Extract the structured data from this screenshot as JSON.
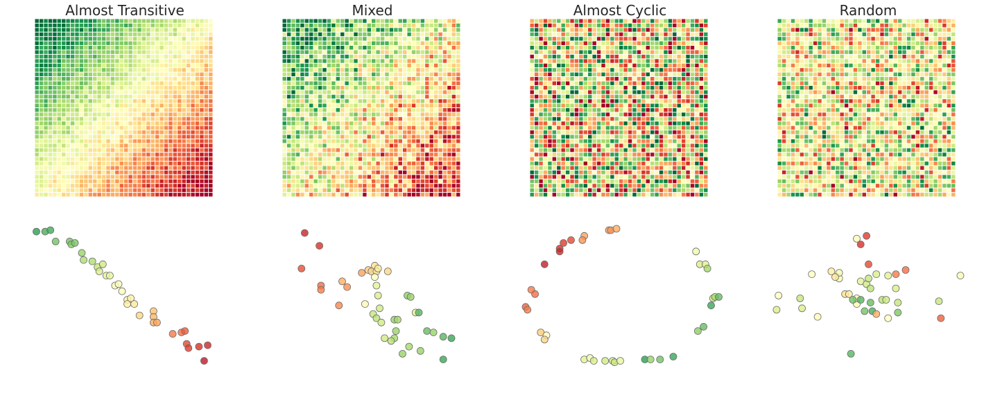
{
  "chart_data": [
    {
      "type": "heatmap",
      "title": "Almost Transitive",
      "grid_size": 40,
      "pattern": "transitive",
      "noise": 0.12,
      "seed": 11,
      "colormap": "RdYlGn (reversed)"
    },
    {
      "type": "heatmap",
      "title": "Mixed",
      "grid_size": 40,
      "pattern": "mixed",
      "noise": 0.35,
      "seed": 23,
      "colormap": "RdYlGn (reversed)"
    },
    {
      "type": "heatmap",
      "title": "Almost Cyclic",
      "grid_size": 40,
      "pattern": "cyclic",
      "noise": 0.25,
      "seed": 37,
      "colormap": "RdYlGn (reversed)"
    },
    {
      "type": "heatmap",
      "title": "Random",
      "grid_size": 40,
      "pattern": "random",
      "noise": 0.0,
      "seed": 53,
      "colormap": "RdYlGn (reversed)"
    },
    {
      "type": "scatter",
      "panel": "Almost Transitive",
      "xlim": [
        0,
        1
      ],
      "ylim": [
        0,
        1
      ],
      "points": [
        {
          "x": 0.01,
          "y": 0.98,
          "v": 0.12
        },
        {
          "x": 0.06,
          "y": 0.98,
          "v": 0.16
        },
        {
          "x": 0.09,
          "y": 0.99,
          "v": 0.15
        },
        {
          "x": 0.12,
          "y": 0.91,
          "v": 0.22
        },
        {
          "x": 0.2,
          "y": 0.91,
          "v": 0.22
        },
        {
          "x": 0.21,
          "y": 0.89,
          "v": 0.25
        },
        {
          "x": 0.23,
          "y": 0.9,
          "v": 0.23
        },
        {
          "x": 0.27,
          "y": 0.83,
          "v": 0.28
        },
        {
          "x": 0.28,
          "y": 0.78,
          "v": 0.32
        },
        {
          "x": 0.33,
          "y": 0.77,
          "v": 0.32
        },
        {
          "x": 0.36,
          "y": 0.73,
          "v": 0.36
        },
        {
          "x": 0.39,
          "y": 0.75,
          "v": 0.38
        },
        {
          "x": 0.37,
          "y": 0.7,
          "v": 0.4
        },
        {
          "x": 0.41,
          "y": 0.67,
          "v": 0.42
        },
        {
          "x": 0.43,
          "y": 0.67,
          "v": 0.44
        },
        {
          "x": 0.46,
          "y": 0.6,
          "v": 0.48
        },
        {
          "x": 0.48,
          "y": 0.61,
          "v": 0.49
        },
        {
          "x": 0.5,
          "y": 0.56,
          "v": 0.51
        },
        {
          "x": 0.53,
          "y": 0.5,
          "v": 0.53
        },
        {
          "x": 0.55,
          "y": 0.51,
          "v": 0.54
        },
        {
          "x": 0.53,
          "y": 0.47,
          "v": 0.55
        },
        {
          "x": 0.57,
          "y": 0.47,
          "v": 0.57
        },
        {
          "x": 0.6,
          "y": 0.39,
          "v": 0.62
        },
        {
          "x": 0.68,
          "y": 0.42,
          "v": 0.66
        },
        {
          "x": 0.68,
          "y": 0.38,
          "v": 0.68
        },
        {
          "x": 0.68,
          "y": 0.34,
          "v": 0.7
        },
        {
          "x": 0.7,
          "y": 0.34,
          "v": 0.71
        },
        {
          "x": 0.79,
          "y": 0.26,
          "v": 0.78
        },
        {
          "x": 0.84,
          "y": 0.27,
          "v": 0.8
        },
        {
          "x": 0.86,
          "y": 0.28,
          "v": 0.83
        },
        {
          "x": 0.87,
          "y": 0.19,
          "v": 0.86
        },
        {
          "x": 0.88,
          "y": 0.16,
          "v": 0.88
        },
        {
          "x": 0.94,
          "y": 0.17,
          "v": 0.9
        },
        {
          "x": 0.99,
          "y": 0.18,
          "v": 0.92
        },
        {
          "x": 0.97,
          "y": 0.07,
          "v": 0.95
        }
      ]
    },
    {
      "type": "scatter",
      "panel": "Mixed",
      "xlim": [
        0,
        1
      ],
      "ylim": [
        0,
        1
      ],
      "points": [
        {
          "x": 0.07,
          "y": 0.97,
          "v": 0.93
        },
        {
          "x": 0.16,
          "y": 0.88,
          "v": 0.9
        },
        {
          "x": 0.05,
          "y": 0.72,
          "v": 0.85
        },
        {
          "x": 0.17,
          "y": 0.6,
          "v": 0.8
        },
        {
          "x": 0.17,
          "y": 0.57,
          "v": 0.78
        },
        {
          "x": 0.28,
          "y": 0.46,
          "v": 0.76
        },
        {
          "x": 0.3,
          "y": 0.63,
          "v": 0.7
        },
        {
          "x": 0.33,
          "y": 0.59,
          "v": 0.75
        },
        {
          "x": 0.42,
          "y": 0.69,
          "v": 0.72
        },
        {
          "x": 0.46,
          "y": 0.71,
          "v": 0.64
        },
        {
          "x": 0.48,
          "y": 0.7,
          "v": 0.62
        },
        {
          "x": 0.5,
          "y": 0.74,
          "v": 0.6
        },
        {
          "x": 0.51,
          "y": 0.7,
          "v": 0.58
        },
        {
          "x": 0.52,
          "y": 0.72,
          "v": 0.56
        },
        {
          "x": 0.58,
          "y": 0.7,
          "v": 0.62
        },
        {
          "x": 0.5,
          "y": 0.66,
          "v": 0.5
        },
        {
          "x": 0.51,
          "y": 0.6,
          "v": 0.42
        },
        {
          "x": 0.52,
          "y": 0.53,
          "v": 0.4
        },
        {
          "x": 0.44,
          "y": 0.47,
          "v": 0.52
        },
        {
          "x": 0.53,
          "y": 0.44,
          "v": 0.38
        },
        {
          "x": 0.49,
          "y": 0.4,
          "v": 0.36
        },
        {
          "x": 0.51,
          "y": 0.37,
          "v": 0.34
        },
        {
          "x": 0.54,
          "y": 0.34,
          "v": 0.38
        },
        {
          "x": 0.62,
          "y": 0.36,
          "v": 0.28
        },
        {
          "x": 0.64,
          "y": 0.36,
          "v": 0.3
        },
        {
          "x": 0.7,
          "y": 0.53,
          "v": 0.26
        },
        {
          "x": 0.72,
          "y": 0.52,
          "v": 0.28
        },
        {
          "x": 0.75,
          "y": 0.41,
          "v": 0.42
        },
        {
          "x": 0.77,
          "y": 0.41,
          "v": 0.18
        },
        {
          "x": 0.63,
          "y": 0.28,
          "v": 0.28
        },
        {
          "x": 0.62,
          "y": 0.23,
          "v": 0.3
        },
        {
          "x": 0.6,
          "y": 0.21,
          "v": 0.34
        },
        {
          "x": 0.56,
          "y": 0.23,
          "v": 0.38
        },
        {
          "x": 0.71,
          "y": 0.17,
          "v": 0.3
        },
        {
          "x": 0.67,
          "y": 0.12,
          "v": 0.28
        },
        {
          "x": 0.78,
          "y": 0.14,
          "v": 0.28
        },
        {
          "x": 0.82,
          "y": 0.28,
          "v": 0.2
        },
        {
          "x": 0.86,
          "y": 0.27,
          "v": 0.28
        },
        {
          "x": 0.92,
          "y": 0.24,
          "v": 0.18
        },
        {
          "x": 0.97,
          "y": 0.23,
          "v": 0.14
        },
        {
          "x": 0.92,
          "y": 0.08,
          "v": 0.14
        }
      ]
    },
    {
      "type": "scatter",
      "panel": "Almost Cyclic",
      "xlim": [
        0,
        1
      ],
      "ylim": [
        0,
        1
      ],
      "points": [
        {
          "x": 0.44,
          "y": 0.99,
          "v": 0.72
        },
        {
          "x": 0.45,
          "y": 0.99,
          "v": 0.74
        },
        {
          "x": 0.48,
          "y": 1.0,
          "v": 0.7
        },
        {
          "x": 0.31,
          "y": 0.95,
          "v": 0.72
        },
        {
          "x": 0.3,
          "y": 0.92,
          "v": 0.74
        },
        {
          "x": 0.24,
          "y": 0.92,
          "v": 0.86
        },
        {
          "x": 0.2,
          "y": 0.9,
          "v": 0.88
        },
        {
          "x": 0.18,
          "y": 0.86,
          "v": 0.9
        },
        {
          "x": 0.18,
          "y": 0.84,
          "v": 0.92
        },
        {
          "x": 0.1,
          "y": 0.75,
          "v": 0.94
        },
        {
          "x": 0.03,
          "y": 0.57,
          "v": 0.78
        },
        {
          "x": 0.05,
          "y": 0.54,
          "v": 0.8
        },
        {
          "x": 0.0,
          "y": 0.45,
          "v": 0.82
        },
        {
          "x": 0.01,
          "y": 0.43,
          "v": 0.78
        },
        {
          "x": 0.08,
          "y": 0.27,
          "v": 0.64
        },
        {
          "x": 0.11,
          "y": 0.25,
          "v": 0.52
        },
        {
          "x": 0.1,
          "y": 0.22,
          "v": 0.62
        },
        {
          "x": 0.31,
          "y": 0.08,
          "v": 0.42
        },
        {
          "x": 0.34,
          "y": 0.09,
          "v": 0.46
        },
        {
          "x": 0.36,
          "y": 0.07,
          "v": 0.4
        },
        {
          "x": 0.42,
          "y": 0.07,
          "v": 0.38
        },
        {
          "x": 0.46,
          "y": 0.07,
          "v": 0.4
        },
        {
          "x": 0.47,
          "y": 0.06,
          "v": 0.36
        },
        {
          "x": 0.5,
          "y": 0.07,
          "v": 0.44
        },
        {
          "x": 0.63,
          "y": 0.08,
          "v": 0.12
        },
        {
          "x": 0.66,
          "y": 0.08,
          "v": 0.28
        },
        {
          "x": 0.71,
          "y": 0.08,
          "v": 0.22
        },
        {
          "x": 0.78,
          "y": 0.1,
          "v": 0.14
        },
        {
          "x": 0.91,
          "y": 0.28,
          "v": 0.26
        },
        {
          "x": 0.94,
          "y": 0.31,
          "v": 0.2
        },
        {
          "x": 0.98,
          "y": 0.46,
          "v": 0.14
        },
        {
          "x": 0.99,
          "y": 0.51,
          "v": 0.38
        },
        {
          "x": 1.0,
          "y": 0.52,
          "v": 0.3
        },
        {
          "x": 1.02,
          "y": 0.52,
          "v": 0.2
        },
        {
          "x": 0.92,
          "y": 0.75,
          "v": 0.4
        },
        {
          "x": 0.95,
          "y": 0.75,
          "v": 0.42
        },
        {
          "x": 0.96,
          "y": 0.72,
          "v": 0.3
        },
        {
          "x": 0.9,
          "y": 0.84,
          "v": 0.46
        }
      ]
    },
    {
      "type": "scatter",
      "panel": "Random",
      "xlim": [
        0,
        1
      ],
      "ylim": [
        0,
        1
      ],
      "points": [
        {
          "x": 0.47,
          "y": 0.93,
          "v": 0.52
        },
        {
          "x": 0.52,
          "y": 0.95,
          "v": 0.88
        },
        {
          "x": 0.49,
          "y": 0.89,
          "v": 0.9
        },
        {
          "x": 0.53,
          "y": 0.75,
          "v": 0.86
        },
        {
          "x": 0.24,
          "y": 0.68,
          "v": 0.5
        },
        {
          "x": 0.38,
          "y": 0.65,
          "v": 0.48
        },
        {
          "x": 0.34,
          "y": 0.7,
          "v": 0.56
        },
        {
          "x": 0.38,
          "y": 0.69,
          "v": 0.46
        },
        {
          "x": 0.36,
          "y": 0.66,
          "v": 0.58
        },
        {
          "x": 0.57,
          "y": 0.68,
          "v": 0.4
        },
        {
          "x": 0.63,
          "y": 0.67,
          "v": 0.42
        },
        {
          "x": 0.67,
          "y": 0.68,
          "v": 0.78
        },
        {
          "x": 0.72,
          "y": 0.71,
          "v": 0.8
        },
        {
          "x": 0.49,
          "y": 0.63,
          "v": 0.42
        },
        {
          "x": 0.52,
          "y": 0.61,
          "v": 0.38
        },
        {
          "x": 0.53,
          "y": 0.65,
          "v": 0.36
        },
        {
          "x": 0.54,
          "y": 0.58,
          "v": 0.34
        },
        {
          "x": 0.41,
          "y": 0.54,
          "v": 0.6
        },
        {
          "x": 0.43,
          "y": 0.54,
          "v": 0.56
        },
        {
          "x": 0.47,
          "y": 0.47,
          "v": 0.52
        },
        {
          "x": 0.47,
          "y": 0.51,
          "v": 0.48
        },
        {
          "x": 0.49,
          "y": 0.5,
          "v": 0.18
        },
        {
          "x": 0.45,
          "y": 0.5,
          "v": 0.22
        },
        {
          "x": 0.54,
          "y": 0.48,
          "v": 0.2
        },
        {
          "x": 0.55,
          "y": 0.42,
          "v": 0.16
        },
        {
          "x": 0.51,
          "y": 0.42,
          "v": 0.22
        },
        {
          "x": 0.57,
          "y": 0.4,
          "v": 0.7
        },
        {
          "x": 0.6,
          "y": 0.5,
          "v": 0.34
        },
        {
          "x": 0.62,
          "y": 0.5,
          "v": 0.38
        },
        {
          "x": 0.63,
          "y": 0.37,
          "v": 0.5
        },
        {
          "x": 0.67,
          "y": 0.58,
          "v": 0.4
        },
        {
          "x": 0.68,
          "y": 0.48,
          "v": 0.36
        },
        {
          "x": 0.68,
          "y": 0.41,
          "v": 0.24
        },
        {
          "x": 0.89,
          "y": 0.49,
          "v": 0.36
        },
        {
          "x": 0.9,
          "y": 0.37,
          "v": 0.82
        },
        {
          "x": 1.0,
          "y": 0.67,
          "v": 0.48
        },
        {
          "x": 0.06,
          "y": 0.43,
          "v": 0.4
        },
        {
          "x": 0.07,
          "y": 0.53,
          "v": 0.5
        },
        {
          "x": 0.18,
          "y": 0.51,
          "v": 0.36
        },
        {
          "x": 0.19,
          "y": 0.44,
          "v": 0.4
        },
        {
          "x": 0.27,
          "y": 0.38,
          "v": 0.52
        },
        {
          "x": 0.44,
          "y": 0.12,
          "v": 0.18
        }
      ]
    }
  ]
}
